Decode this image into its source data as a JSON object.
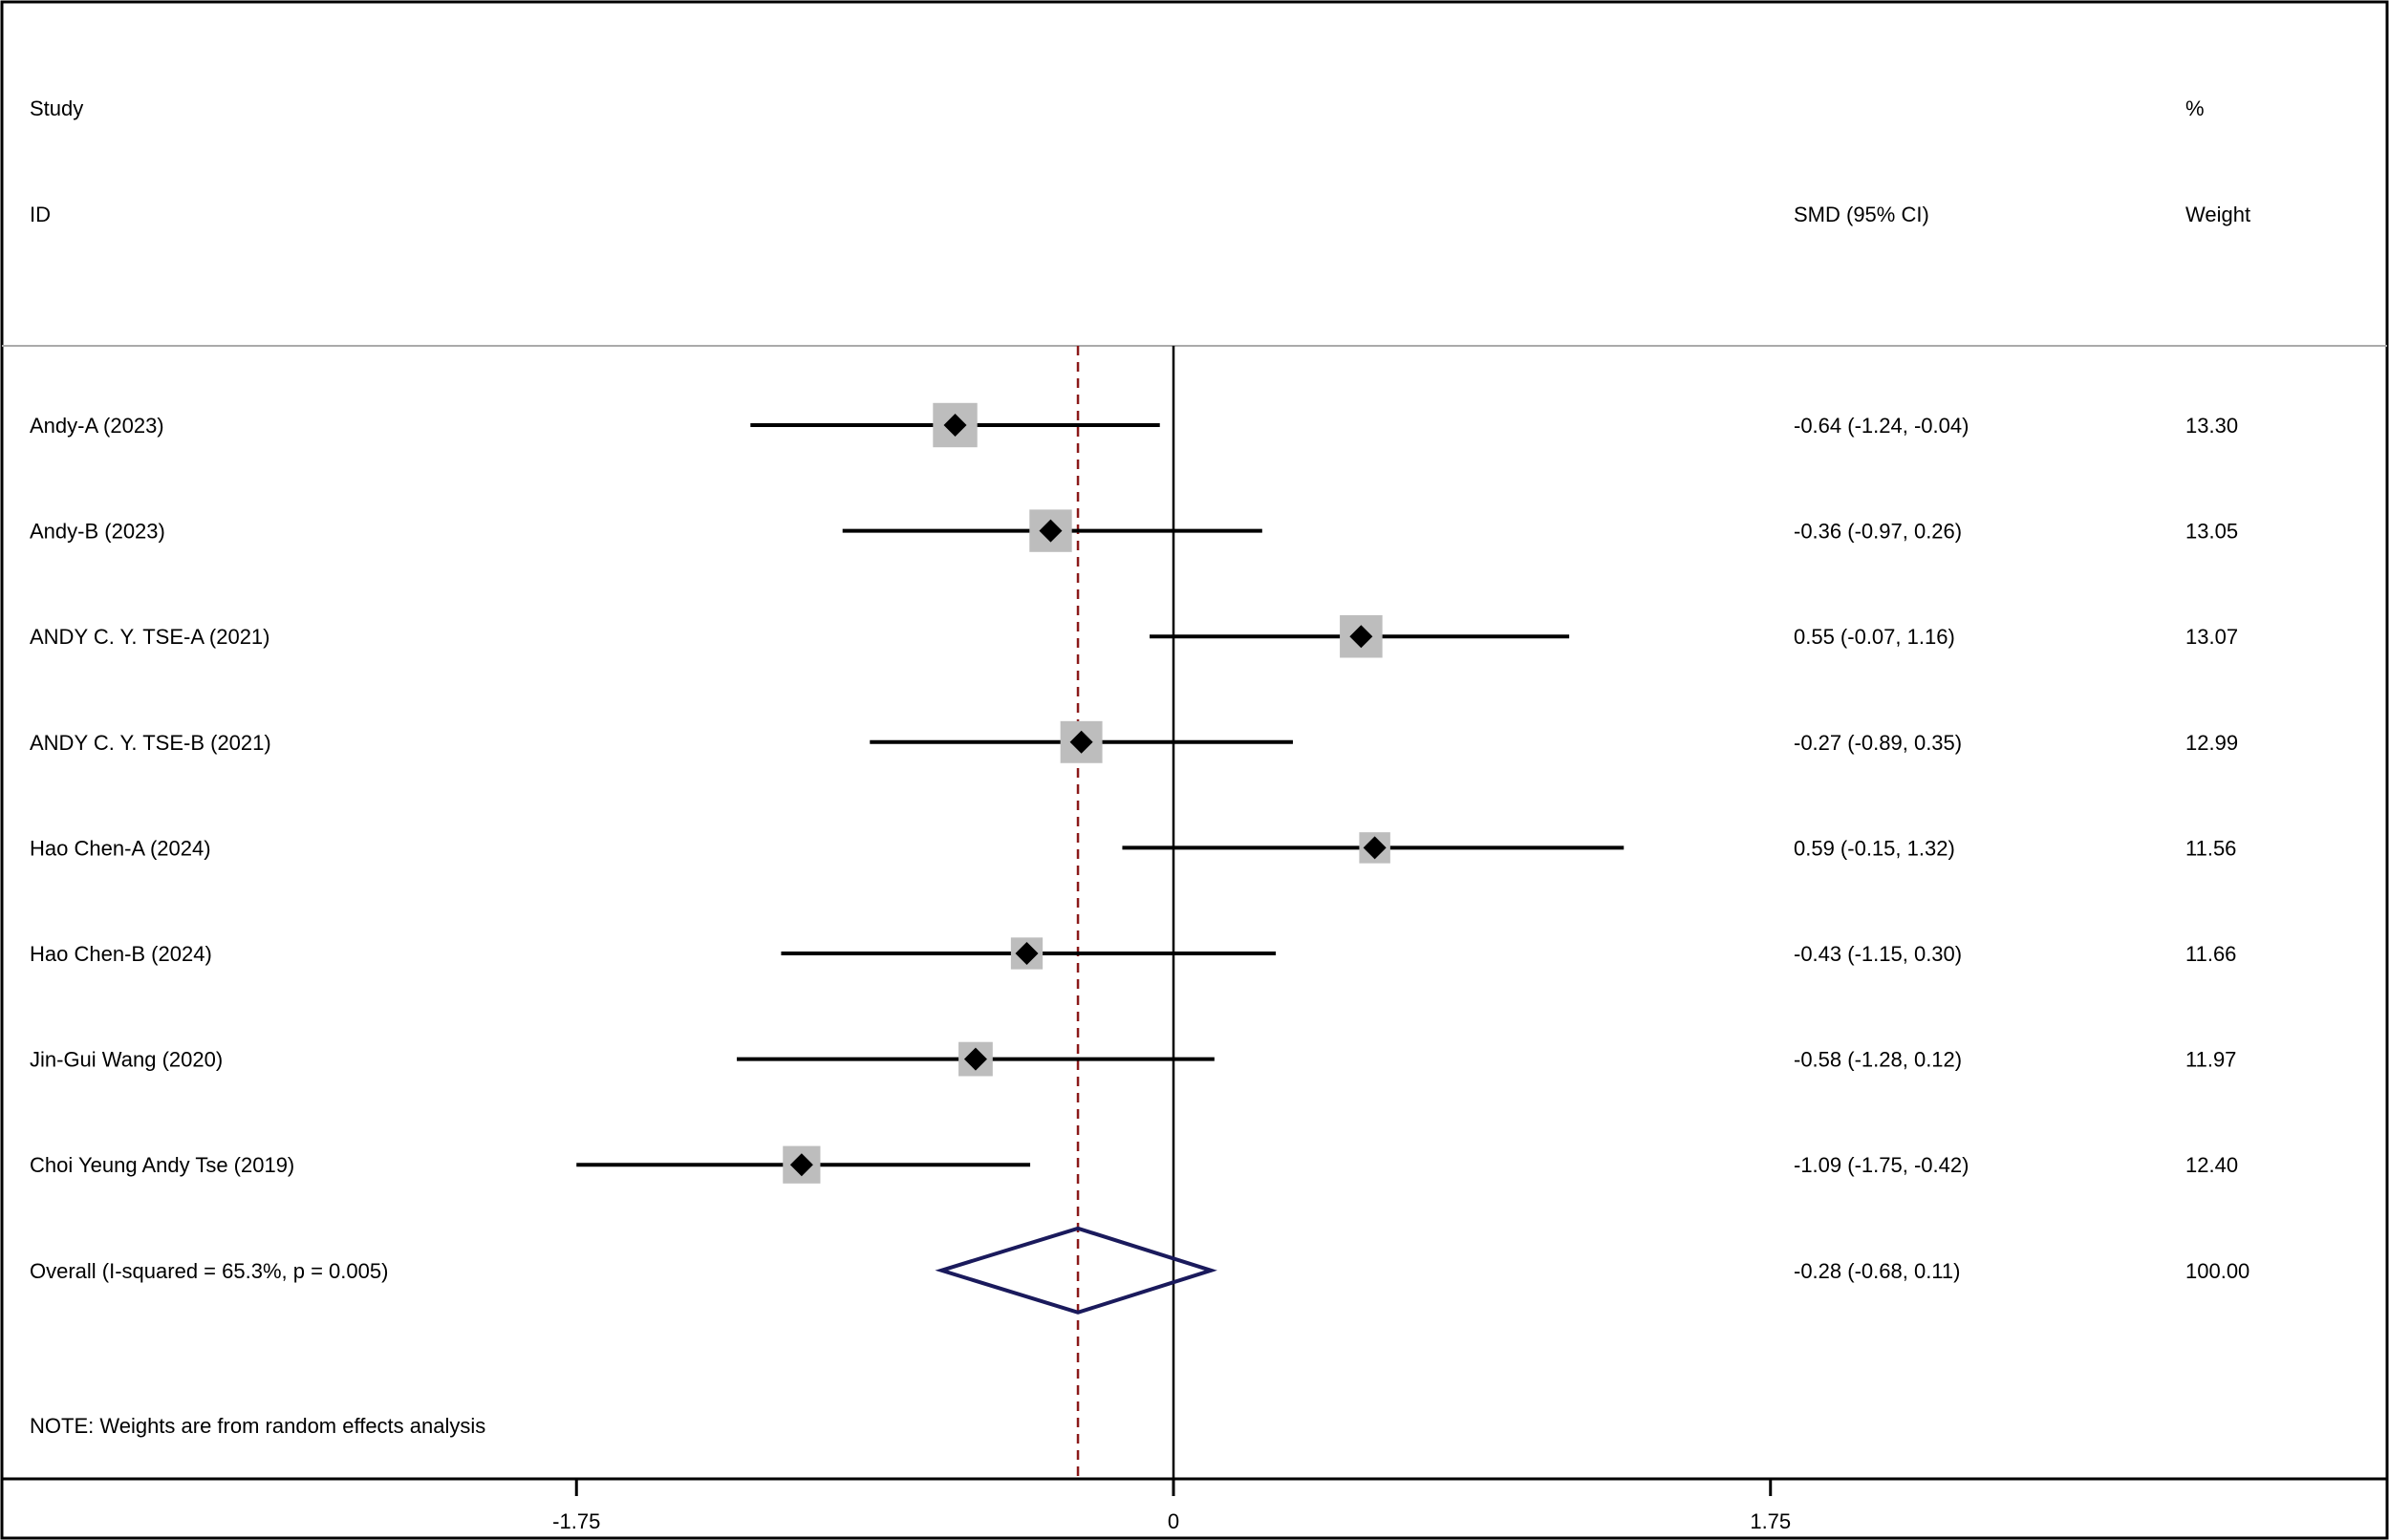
{
  "chart_data": {
    "type": "forest",
    "header": {
      "study_line1": "Study",
      "study_line2": "ID",
      "effect_label": "SMD (95% CI)",
      "weight_line1": "%",
      "weight_line2": "Weight"
    },
    "studies": [
      {
        "id": "Andy-A (2023)",
        "smd": -0.64,
        "lo": -1.24,
        "hi": -0.04,
        "ci_text": "-0.64 (-1.24, -0.04)",
        "weight": 13.3,
        "weight_text": "13.30"
      },
      {
        "id": "Andy-B (2023)",
        "smd": -0.36,
        "lo": -0.97,
        "hi": 0.26,
        "ci_text": "-0.36 (-0.97, 0.26)",
        "weight": 13.05,
        "weight_text": "13.05"
      },
      {
        "id": "ANDY C. Y. TSE-A (2021)",
        "smd": 0.55,
        "lo": -0.07,
        "hi": 1.16,
        "ci_text": "0.55 (-0.07, 1.16)",
        "weight": 13.07,
        "weight_text": "13.07"
      },
      {
        "id": "ANDY C. Y. TSE-B (2021)",
        "smd": -0.27,
        "lo": -0.89,
        "hi": 0.35,
        "ci_text": "-0.27 (-0.89, 0.35)",
        "weight": 12.99,
        "weight_text": "12.99"
      },
      {
        "id": "Hao Chen-A (2024)",
        "smd": 0.59,
        "lo": -0.15,
        "hi": 1.32,
        "ci_text": "0.59 (-0.15, 1.32)",
        "weight": 11.56,
        "weight_text": "11.56"
      },
      {
        "id": "Hao Chen-B (2024)",
        "smd": -0.43,
        "lo": -1.15,
        "hi": 0.3,
        "ci_text": "-0.43 (-1.15, 0.30)",
        "weight": 11.66,
        "weight_text": "11.66"
      },
      {
        "id": "Jin-Gui Wang (2020)",
        "smd": -0.58,
        "lo": -1.28,
        "hi": 0.12,
        "ci_text": "-0.58 (-1.28, 0.12)",
        "weight": 11.97,
        "weight_text": "11.97"
      },
      {
        "id": "Choi Yeung Andy Tse (2019)",
        "smd": -1.09,
        "lo": -1.75,
        "hi": -0.42,
        "ci_text": "-1.09 (-1.75, -0.42)",
        "weight": 12.4,
        "weight_text": "12.40"
      }
    ],
    "overall": {
      "label": "Overall  (I-squared = 65.3%, p = 0.005)",
      "smd": -0.28,
      "lo": -0.68,
      "hi": 0.11,
      "ci_text": "-0.28 (-0.68, 0.11)",
      "weight_text": "100.00"
    },
    "note": "NOTE: Weights are from random effects analysis",
    "x_ticks": [
      {
        "value": -1.75,
        "label": "-1.75"
      },
      {
        "value": 0,
        "label": "0"
      },
      {
        "value": 1.75,
        "label": "1.75"
      }
    ],
    "xlim": [
      -3.44,
      3.57
    ],
    "colors": {
      "marker": "#000000",
      "weight_box": "#bdbdbd",
      "overall_diamond": "#1a1a5c",
      "overall_line": "#8b1a1a",
      "axis": "#000000",
      "header_rule": "#aaaaaa"
    }
  }
}
